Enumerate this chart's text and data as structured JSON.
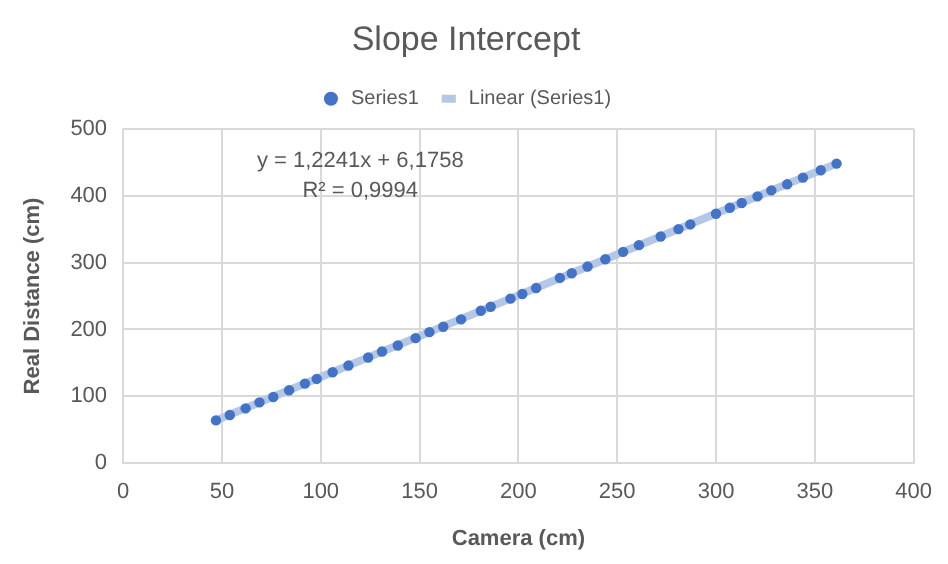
{
  "chart_data": {
    "type": "scatter",
    "title": "Slope Intercept",
    "xlabel": "Camera (cm)",
    "ylabel": "Real Distance (cm)",
    "annotations": [
      "y = 1,2241x + 6,1758",
      "R² = 0,9994"
    ],
    "series": [
      {
        "name": "Series1",
        "color": "#4472c4",
        "marker": "circle",
        "x": [
          47,
          54,
          62,
          69,
          76,
          84,
          92,
          98,
          106,
          114,
          124,
          131,
          139,
          148,
          155,
          162,
          171,
          181,
          186,
          196,
          202,
          209,
          221,
          227,
          235,
          244,
          253,
          261,
          272,
          281,
          287,
          300,
          307,
          313,
          321,
          328,
          336,
          344,
          353,
          361
        ],
        "values": [
          64,
          72,
          82,
          91,
          99,
          109,
          119,
          126,
          136,
          146,
          158,
          167,
          176,
          187,
          196,
          204,
          215,
          228,
          234,
          246,
          253,
          262,
          277,
          284,
          294,
          305,
          316,
          326,
          339,
          350,
          357,
          373,
          382,
          389,
          399,
          408,
          417,
          427,
          438,
          448
        ]
      },
      {
        "name": "Linear (Series1)",
        "type": "line",
        "color": "#b4c7e7",
        "marker": "none",
        "x": [
          47,
          361
        ],
        "values": [
          64,
          448
        ]
      }
    ],
    "xlim": [
      0,
      400
    ],
    "xticks": [
      0,
      50,
      100,
      150,
      200,
      250,
      300,
      350,
      400
    ],
    "ylim": [
      0,
      500
    ],
    "yticks": [
      0,
      100,
      200,
      300,
      400,
      500
    ],
    "grid": true,
    "legend": "top"
  }
}
